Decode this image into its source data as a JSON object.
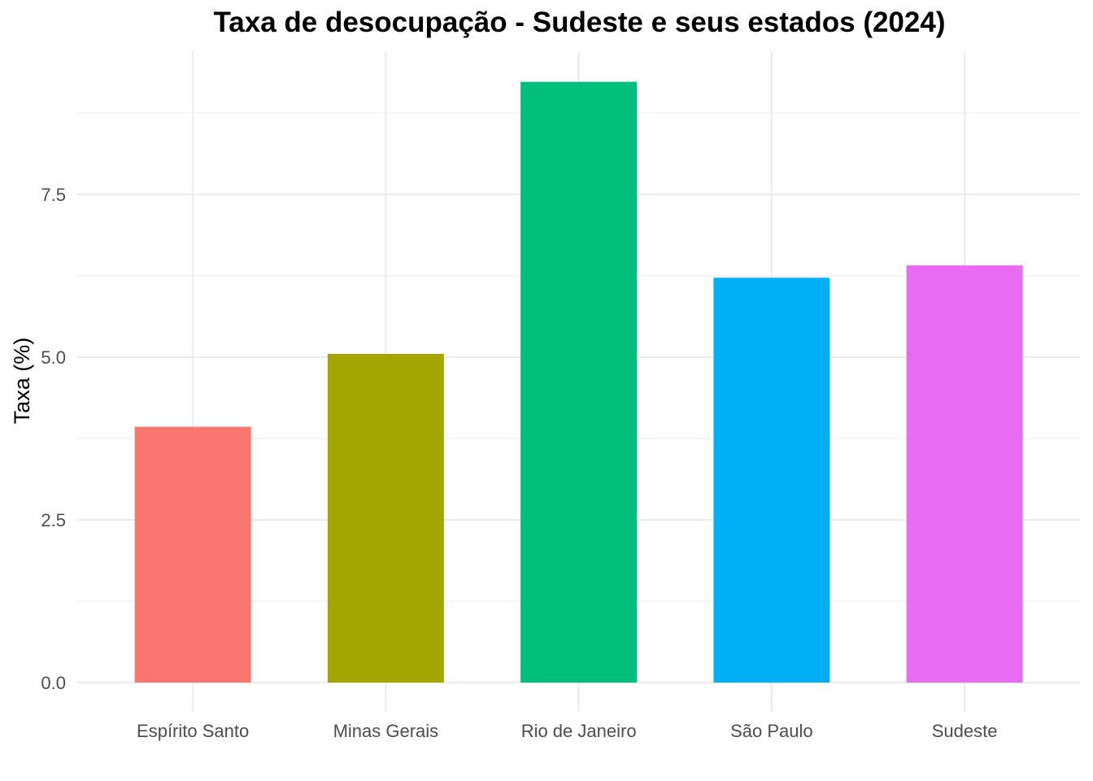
{
  "chart_data": {
    "type": "bar",
    "title": "Taxa de desocupação - Sudeste e seus estados (2024)",
    "xlabel": "",
    "ylabel": "Taxa (%)",
    "categories": [
      "Espírito Santo",
      "Minas Gerais",
      "Rio de Janeiro",
      "São Paulo",
      "Sudeste"
    ],
    "values": [
      3.93,
      5.05,
      9.23,
      6.22,
      6.41
    ],
    "colors": [
      "#F8766D",
      "#A3A500",
      "#00BF7D",
      "#00B0F6",
      "#E76BF3"
    ],
    "ylim": [
      -0.45,
      9.7
    ],
    "yticks": [
      0.0,
      2.5,
      5.0,
      7.5
    ],
    "ytick_labels": [
      "0.0",
      "2.5",
      "5.0",
      "7.5"
    ],
    "grid": true,
    "legend": "none"
  }
}
